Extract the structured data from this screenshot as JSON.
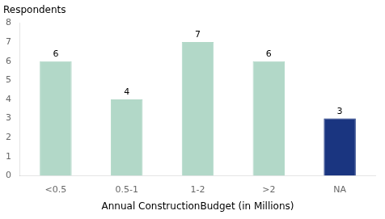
{
  "chart_data": {
    "type": "bar",
    "title": "Respondents",
    "xlabel": "Annual ConstructionBudget (in Millions)",
    "categories": [
      "<0.5",
      "0.5-1",
      "1-2",
      ">2",
      "NA"
    ],
    "values": [
      6,
      4,
      7,
      6,
      3
    ],
    "colors": [
      "#b2d8c8",
      "#b2d8c8",
      "#b2d8c8",
      "#b2d8c8",
      "#1a3580"
    ],
    "ylim": [
      0,
      8
    ],
    "yticks": [
      0,
      1,
      2,
      3,
      4,
      5,
      6,
      7,
      8
    ],
    "grid": false,
    "data_labels": true
  }
}
